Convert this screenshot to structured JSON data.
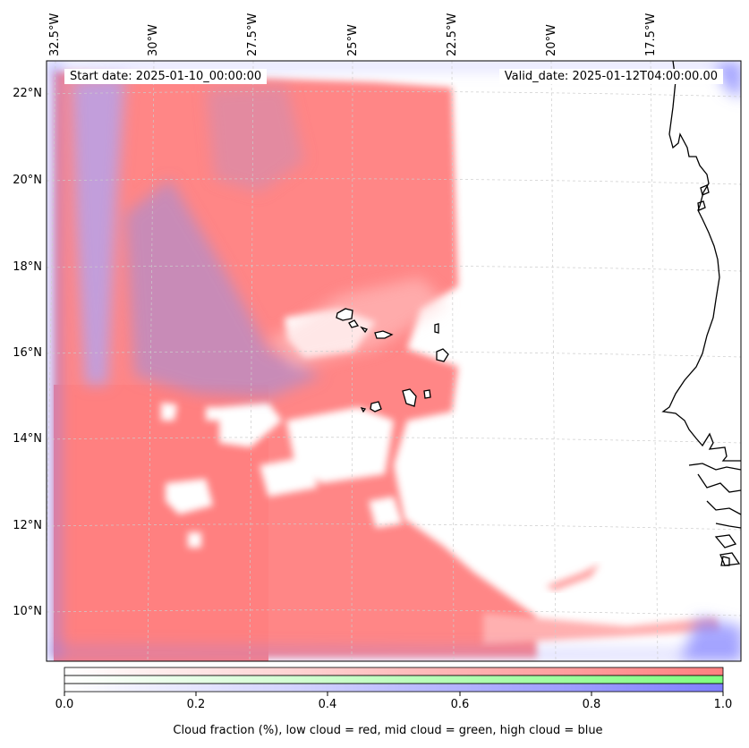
{
  "map": {
    "start_date": "Start date: 2025-01-10_00:00:00",
    "valid_date": "Valid_date: 2025-01-12T04:00:00.00",
    "lon_labels": [
      "32.5°W",
      "30°W",
      "27.5°W",
      "25°W",
      "22.5°W",
      "20°W",
      "17.5°W"
    ],
    "lat_labels": [
      "22°N",
      "20°N",
      "18°N",
      "16°N",
      "14°N",
      "12°N",
      "10°N"
    ],
    "variable": "cloud fraction",
    "colors": {
      "low_cloud": "#ff8080",
      "mid_cloud": "#80ff80",
      "high_cloud": "#8080ff",
      "coastline": "#000000",
      "gridline": "#cccccc"
    }
  },
  "colorbar": {
    "ticks": [
      "0.0",
      "0.2",
      "0.4",
      "0.6",
      "0.8",
      "1.0"
    ],
    "range": [
      0.0,
      1.0
    ],
    "label": "Cloud fraction (%), low cloud = red, mid cloud = green, high cloud = blue"
  }
}
